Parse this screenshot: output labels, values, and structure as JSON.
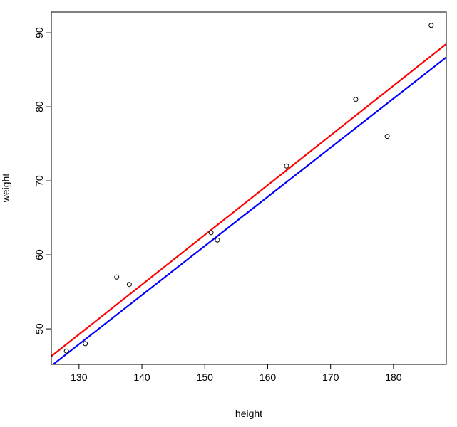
{
  "chart_data": {
    "type": "scatter",
    "title": "",
    "xlabel": "height",
    "ylabel": "weight",
    "xlim": [
      125.6,
      188.4
    ],
    "ylim": [
      45.2,
      92.8
    ],
    "x_ticks": [
      130,
      140,
      150,
      160,
      170,
      180
    ],
    "y_ticks": [
      50,
      60,
      70,
      80,
      90
    ],
    "grid": false,
    "points": [
      {
        "x": 128,
        "y": 47
      },
      {
        "x": 131,
        "y": 48
      },
      {
        "x": 136,
        "y": 57
      },
      {
        "x": 138,
        "y": 56
      },
      {
        "x": 151,
        "y": 63
      },
      {
        "x": 152,
        "y": 62
      },
      {
        "x": 163,
        "y": 72
      },
      {
        "x": 174,
        "y": 81
      },
      {
        "x": 179,
        "y": 76
      },
      {
        "x": 186,
        "y": 91
      }
    ],
    "lines": [
      {
        "color": "#ff0000",
        "start": {
          "x": 125.6,
          "y": 46.3
        },
        "end": {
          "x": 188.4,
          "y": 88.5
        }
      },
      {
        "color": "#0000ff",
        "start": {
          "x": 125.6,
          "y": 45.0
        },
        "end": {
          "x": 188.4,
          "y": 86.7
        }
      }
    ]
  }
}
